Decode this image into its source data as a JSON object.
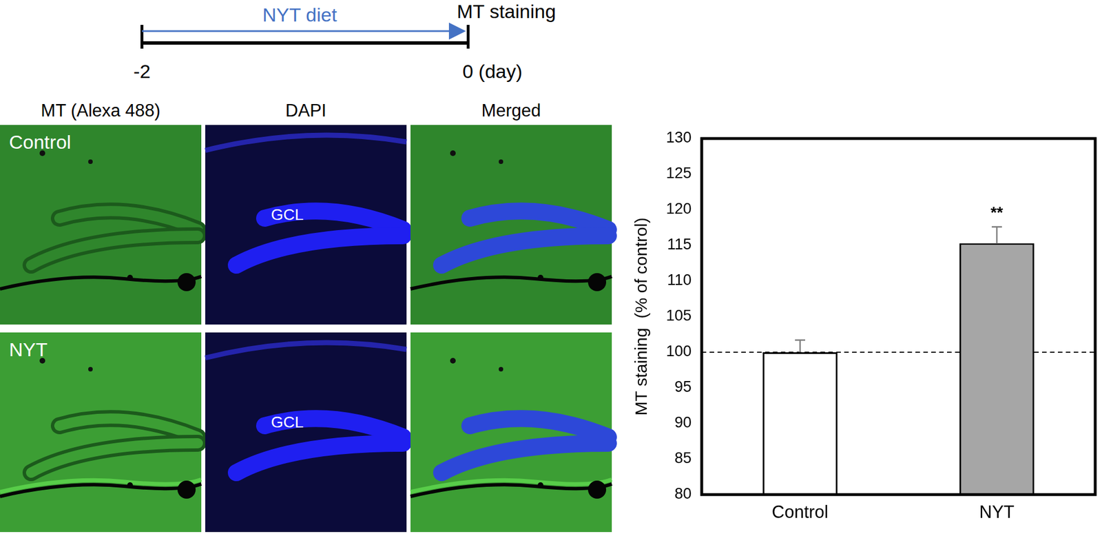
{
  "timeline": {
    "arrow_label": "NYT diet",
    "end_label": "MT staining",
    "start_tick": "-2",
    "end_tick": "0 (day)"
  },
  "panels": {
    "columns": [
      "MT (Alexa 488)",
      "DAPI",
      "Merged"
    ],
    "rows": [
      "Control",
      "NYT"
    ],
    "region_label": "GCL"
  },
  "chart_data": {
    "type": "bar",
    "y_label": "MT staining  (% of control)",
    "categories": [
      "Control",
      "NYT"
    ],
    "values": [
      100,
      115.3
    ],
    "errors": [
      1.7,
      2.3
    ],
    "colors": [
      "#ffffff",
      "#a6a6a6"
    ],
    "ylim": [
      80,
      130
    ],
    "yticks": [
      80,
      85,
      90,
      95,
      100,
      105,
      110,
      115,
      120,
      125,
      130
    ],
    "grid": false,
    "reference_line": 100,
    "annotations": [
      {
        "category": "NYT",
        "text": "**"
      }
    ]
  }
}
